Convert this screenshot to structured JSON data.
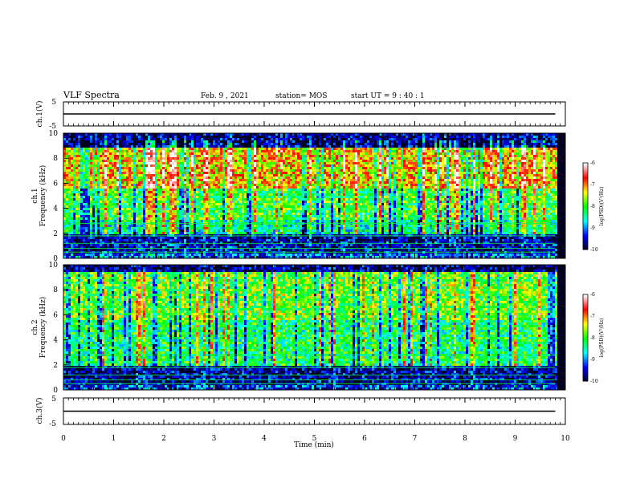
{
  "header": {
    "title": "VLF Spectra",
    "date": "Feb. 9 , 2021",
    "station": "station= MOS",
    "start_ut": "start UT =  9 : 40 : 1"
  },
  "chart_data": [
    {
      "type": "line",
      "id": "ch1-voltage",
      "ylabel": "ch.1(V)",
      "ylim": [
        -5,
        5
      ],
      "yticks": [
        "5",
        "-5"
      ],
      "xlim": [
        0,
        10
      ],
      "series": [
        {
          "x": [
            0,
            9.8
          ],
          "y": [
            0,
            0
          ]
        }
      ]
    },
    {
      "type": "heatmap",
      "id": "ch1-spectrogram",
      "ylabel": "ch.1\nFrequency (kHz)",
      "ylabel_lines": [
        "ch.1",
        "Frequency (kHz)"
      ],
      "ylim": [
        0,
        10
      ],
      "yticks": [
        "0",
        "2",
        "4",
        "6",
        "8",
        "10"
      ],
      "xlim": [
        0,
        10
      ],
      "data_end_min": 9.8,
      "colorbar": {
        "label": "log(PSD)(V²/Hz)",
        "range": [
          -10,
          -6
        ],
        "ticks": [
          "-10",
          "-9",
          "-8",
          "-7",
          "-6"
        ],
        "colors": [
          "#000020",
          "#0000ff",
          "#00ffff",
          "#00ff00",
          "#ffff00",
          "#ff0000",
          "#ffffff"
        ]
      },
      "bands_khz": [
        {
          "from": 8.8,
          "to": 10.0,
          "level": 0.1
        },
        {
          "from": 5.5,
          "to": 8.8,
          "level": 0.7
        },
        {
          "from": 3.0,
          "to": 5.5,
          "level": 0.5
        },
        {
          "from": 2.0,
          "to": 3.0,
          "level": 0.4
        },
        {
          "from": 0.3,
          "to": 2.0,
          "level": 0.12
        },
        {
          "from": 0.0,
          "to": 0.3,
          "level": 0.25
        }
      ]
    },
    {
      "type": "heatmap",
      "id": "ch2-spectrogram",
      "ylabel": "ch.2\nFrequency (kHz)",
      "ylabel_lines": [
        "ch.2",
        "Frequency (kHz)"
      ],
      "ylim": [
        0,
        10
      ],
      "yticks": [
        "0",
        "2",
        "4",
        "6",
        "8",
        "10"
      ],
      "xlim": [
        0,
        10
      ],
      "data_end_min": 9.8,
      "colorbar": {
        "label": "log(PSD)(V²/Hz)",
        "range": [
          -10,
          -6
        ],
        "ticks": [
          "-10",
          "-9",
          "-8",
          "-7",
          "-6"
        ],
        "colors": [
          "#000020",
          "#0000ff",
          "#00ffff",
          "#00ff00",
          "#ffff00",
          "#ff0000",
          "#ffffff"
        ]
      },
      "bands_khz": [
        {
          "from": 9.5,
          "to": 10.0,
          "level": 0.08
        },
        {
          "from": 5.5,
          "to": 9.5,
          "level": 0.55
        },
        {
          "from": 2.0,
          "to": 5.5,
          "level": 0.45
        },
        {
          "from": 0.3,
          "to": 2.0,
          "level": 0.1
        },
        {
          "from": 0.0,
          "to": 0.3,
          "level": 0.2
        }
      ]
    },
    {
      "type": "line",
      "id": "ch3-voltage",
      "ylabel": "ch.3(V)",
      "ylim": [
        -5,
        5
      ],
      "yticks": [
        "5",
        "-5"
      ],
      "xlim": [
        0,
        10
      ],
      "xlabel": "Time (min)",
      "xticks": [
        "0",
        "1",
        "2",
        "3",
        "4",
        "5",
        "6",
        "7",
        "8",
        "9",
        "10"
      ],
      "series": [
        {
          "x": [
            0,
            9.8
          ],
          "y": [
            0,
            0
          ]
        }
      ]
    }
  ]
}
